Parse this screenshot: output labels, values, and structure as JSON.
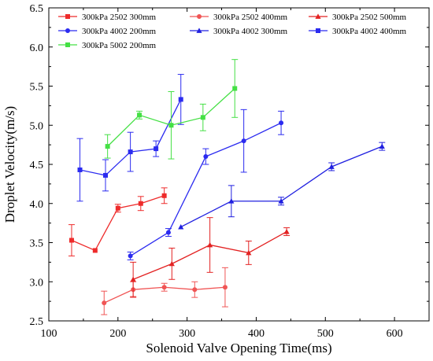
{
  "chart_data": {
    "type": "line",
    "xlabel": "Solenoid Valve Opening Time(ms)",
    "ylabel": "Droplet Velocity(m/s)",
    "xlim": [
      100,
      650
    ],
    "ylim": [
      2.5,
      6.5
    ],
    "x_ticks": [
      100,
      200,
      300,
      400,
      500,
      600
    ],
    "y_ticks": [
      2.5,
      3.0,
      3.5,
      4.0,
      4.5,
      5.0,
      5.5,
      6.0,
      6.5
    ],
    "grid": false,
    "legend_position": "top",
    "series": [
      {
        "name": "300kPa 2502 300mm",
        "color": "#ee2b2b",
        "marker": "square",
        "points": [
          {
            "x": 133,
            "y": 3.53,
            "err": 0.2
          },
          {
            "x": 167,
            "y": 3.4,
            "err": 0.0
          },
          {
            "x": 200,
            "y": 3.94,
            "err": 0.05
          },
          {
            "x": 233,
            "y": 4.0,
            "err": 0.09
          },
          {
            "x": 267,
            "y": 4.1,
            "err": 0.1
          }
        ]
      },
      {
        "name": "300kPa 2502 400mm",
        "color": "#f05555",
        "marker": "circle",
        "points": [
          {
            "x": 180,
            "y": 2.73,
            "err": 0.15
          },
          {
            "x": 222,
            "y": 2.9,
            "err": 0.1
          },
          {
            "x": 267,
            "y": 2.93,
            "err": 0.05
          },
          {
            "x": 311,
            "y": 2.9,
            "err": 0.1
          },
          {
            "x": 355,
            "y": 2.93,
            "err": 0.25
          }
        ]
      },
      {
        "name": "300kPa 2502 500mm",
        "color": "#e32222",
        "marker": "triangle",
        "points": [
          {
            "x": 222,
            "y": 3.03,
            "err": 0.22
          },
          {
            "x": 278,
            "y": 3.23,
            "err": 0.2
          },
          {
            "x": 333,
            "y": 3.47,
            "err": 0.35
          },
          {
            "x": 389,
            "y": 3.37,
            "err": 0.15
          },
          {
            "x": 444,
            "y": 3.64,
            "err": 0.05
          }
        ]
      },
      {
        "name": "300kPa 4002 200mm",
        "color": "#2b2bf0",
        "marker": "circle",
        "points": [
          {
            "x": 218,
            "y": 3.33,
            "err": 0.05
          },
          {
            "x": 273,
            "y": 3.63,
            "err": 0.05
          },
          {
            "x": 327,
            "y": 4.6,
            "err": 0.1
          },
          {
            "x": 382,
            "y": 4.8,
            "err": 0.4
          },
          {
            "x": 436,
            "y": 5.03,
            "err": 0.15
          }
        ]
      },
      {
        "name": "300kPa 4002 300mm",
        "color": "#2020e0",
        "marker": "triangle",
        "points": [
          {
            "x": 291,
            "y": 3.7,
            "err": 0.0
          },
          {
            "x": 364,
            "y": 4.03,
            "err": 0.2
          },
          {
            "x": 436,
            "y": 4.03,
            "err": 0.05
          },
          {
            "x": 509,
            "y": 4.47,
            "err": 0.05
          },
          {
            "x": 582,
            "y": 4.73,
            "err": 0.05
          }
        ]
      },
      {
        "name": "300kPa 4002 400mm",
        "color": "#2b2bf0",
        "marker": "square",
        "points": [
          {
            "x": 145,
            "y": 4.43,
            "err": 0.4
          },
          {
            "x": 182,
            "y": 4.36,
            "err": 0.2
          },
          {
            "x": 218,
            "y": 4.66,
            "err": 0.25
          },
          {
            "x": 255,
            "y": 4.7,
            "err": 0.1
          },
          {
            "x": 291,
            "y": 5.33,
            "err": 0.32
          }
        ]
      },
      {
        "name": "300kPa 5002 200mm",
        "color": "#44e044",
        "marker": "square",
        "points": [
          {
            "x": 185,
            "y": 4.73,
            "err": 0.15
          },
          {
            "x": 231,
            "y": 5.13,
            "err": 0.05
          },
          {
            "x": 277,
            "y": 5.0,
            "err": 0.43
          },
          {
            "x": 323,
            "y": 5.1,
            "err": 0.17
          },
          {
            "x": 369,
            "y": 5.47,
            "err": 0.37
          }
        ]
      }
    ]
  }
}
